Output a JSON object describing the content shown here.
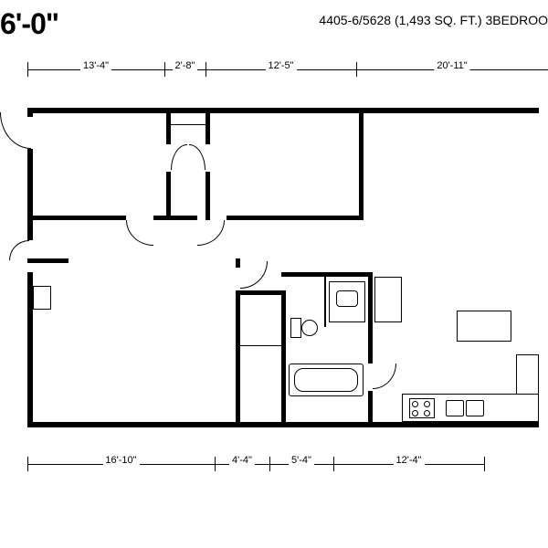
{
  "header": {
    "left_title": "6'-0\"",
    "right_title": "4405-6/5628 (1,493 SQ. FT.) 3BEDROO"
  },
  "dimensions": {
    "top": [
      {
        "label": "13'-4\"",
        "start": 30,
        "end": 180
      },
      {
        "label": "2'-8\"",
        "start": 180,
        "end": 225
      },
      {
        "label": "12'-5\"",
        "start": 225,
        "end": 390
      },
      {
        "label": "20'-11\"",
        "start": 390,
        "end": 600
      }
    ],
    "bottom": [
      {
        "label": "16'-10\"",
        "start": 30,
        "end": 235
      },
      {
        "label": "4'-4\"",
        "start": 235,
        "end": 295
      },
      {
        "label": "5'-4\"",
        "start": 295,
        "end": 365
      },
      {
        "label": "12'-4\"",
        "start": 365,
        "end": 530
      }
    ]
  },
  "plan": {
    "outer_wall_thickness": 6,
    "inner_wall_thickness": 5,
    "thin_wall_thickness": 1.5,
    "colors": {
      "wall": "#000000",
      "bg": "#ffffff",
      "line": "#000000"
    }
  }
}
